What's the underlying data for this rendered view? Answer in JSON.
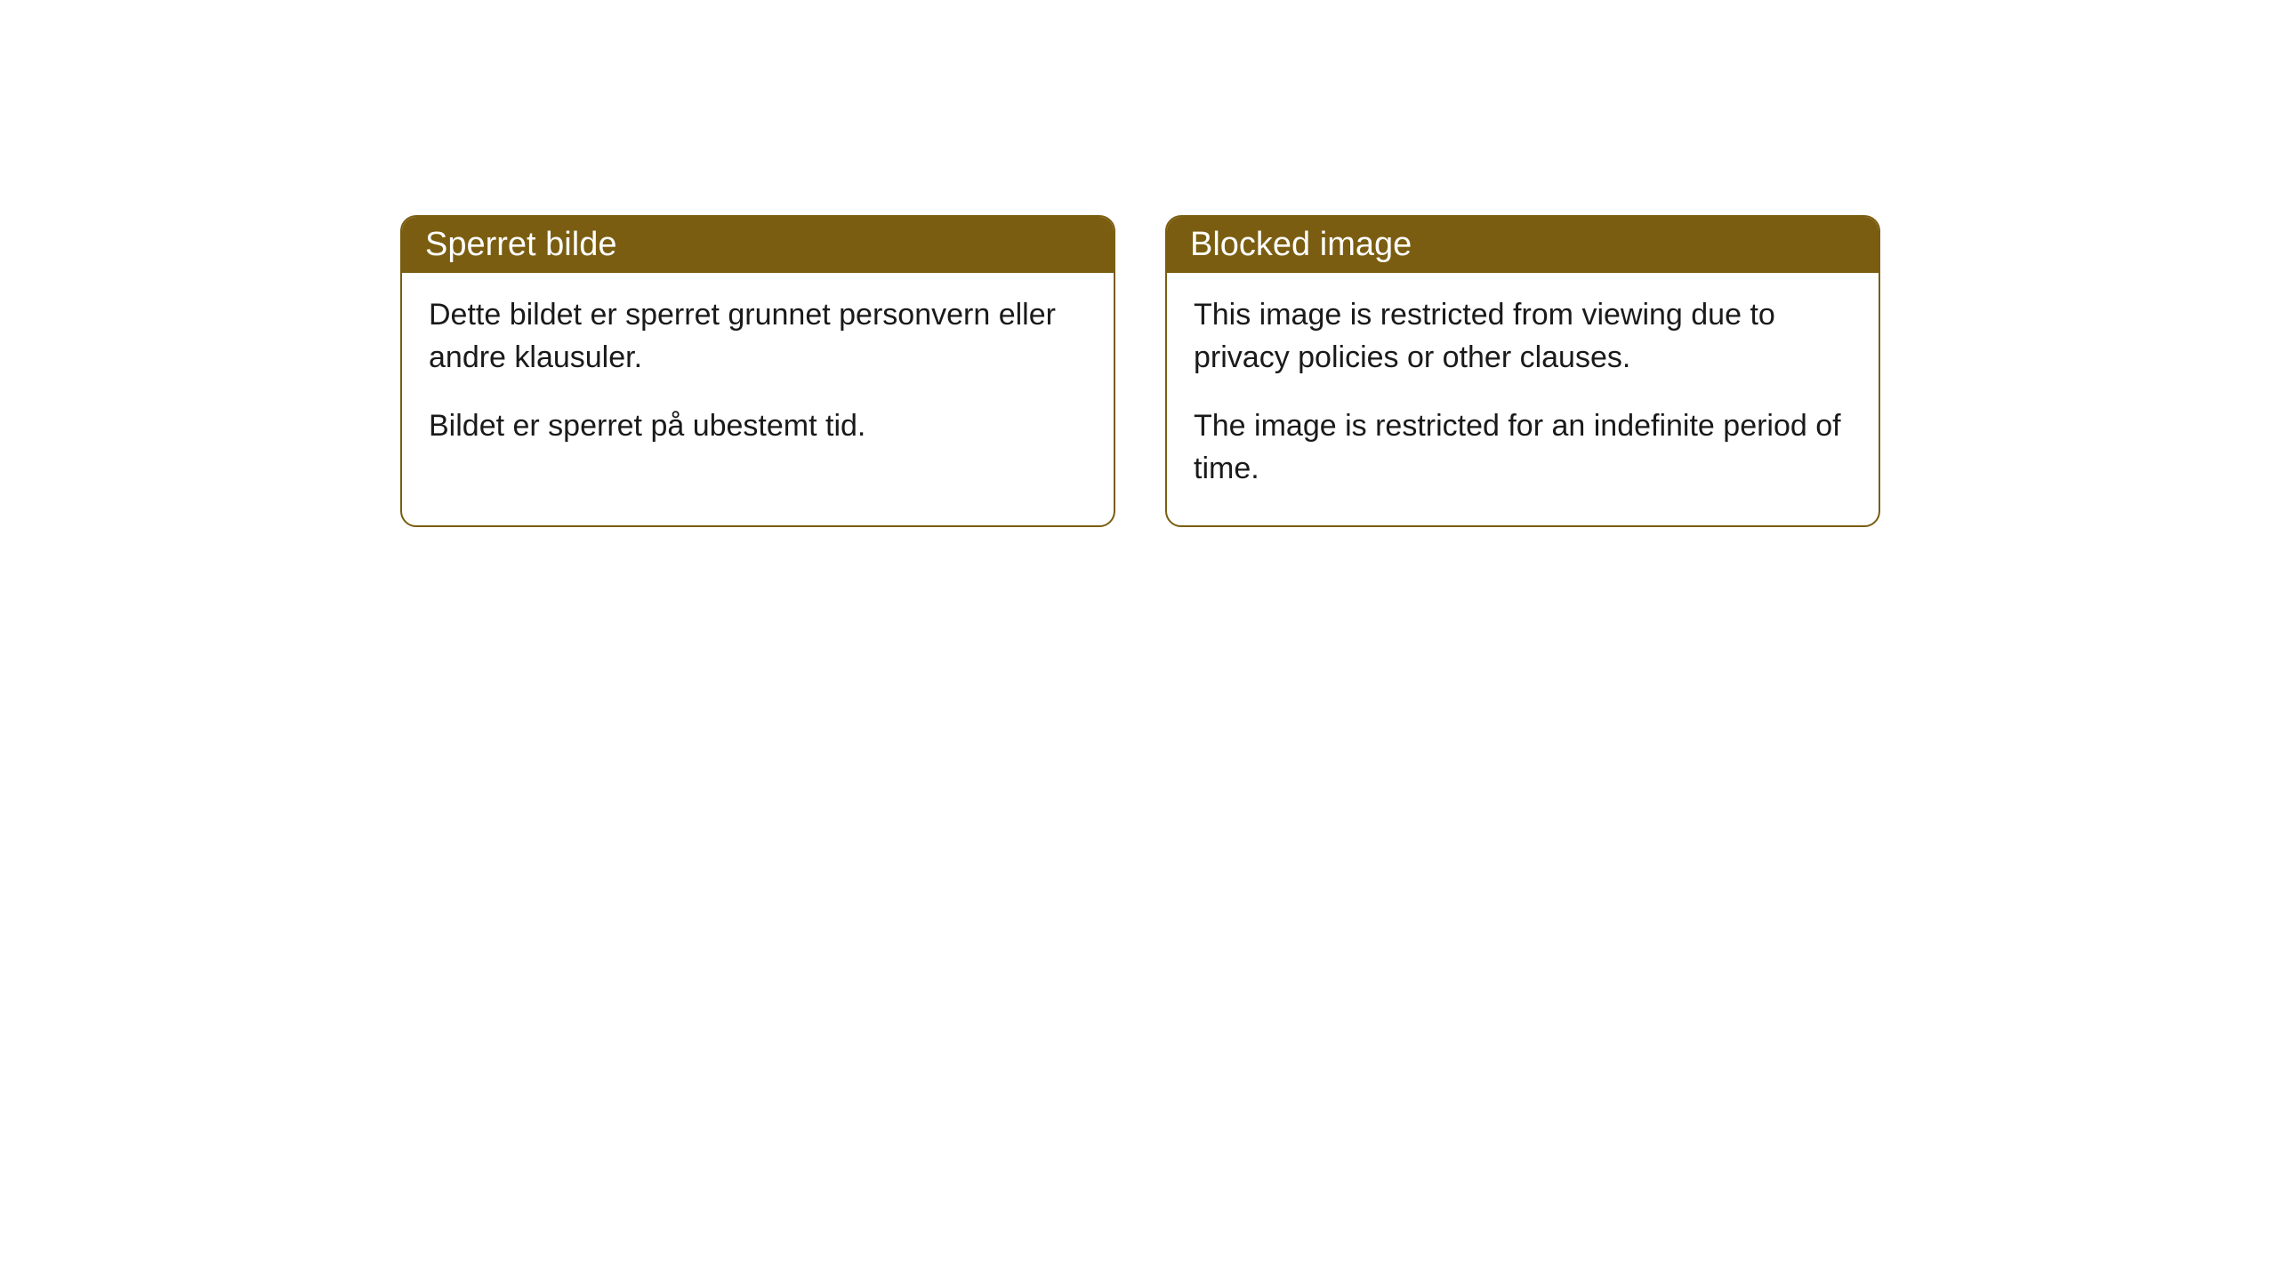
{
  "cards": [
    {
      "title": "Sperret bilde",
      "paragraph1": "Dette bildet er sperret grunnet personvern eller andre klausuler.",
      "paragraph2": "Bildet er sperret på ubestemt tid."
    },
    {
      "title": "Blocked image",
      "paragraph1": "This image is restricted from viewing due to privacy policies or other clauses.",
      "paragraph2": "The image is restricted for an indefinite period of time."
    }
  ],
  "style": {
    "header_bg_color": "#7a5d10",
    "header_text_color": "#ffffff",
    "border_color": "#7a5d10",
    "body_bg_color": "#ffffff",
    "body_text_color": "#1a1a1a",
    "border_radius": 18,
    "title_fontsize": 38,
    "body_fontsize": 34
  }
}
